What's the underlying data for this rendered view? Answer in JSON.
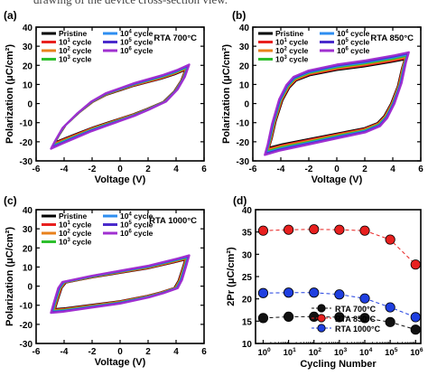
{
  "caption_fragment": "drawing of the device cross-section view.",
  "chart_data": [
    {
      "panel": "(a)",
      "type": "line",
      "annotation": "RTA 700°C",
      "xlabel": "Voltage (V)",
      "ylabel": "Polarization (μC/cm²)",
      "xlim": [
        -6,
        6
      ],
      "ylim": [
        -30,
        40
      ],
      "xticks": [
        -6,
        -4,
        -2,
        0,
        2,
        4,
        6
      ],
      "yticks": [
        -30,
        -20,
        -10,
        0,
        10,
        20,
        30,
        40
      ],
      "legend": [
        {
          "label": "Pristine",
          "sup": "",
          "color": "#000000"
        },
        {
          "label": "10",
          "sup": "1",
          "suffix": " cycle",
          "color": "#e8201f"
        },
        {
          "label": "10",
          "sup": "2",
          "suffix": " cycle",
          "color": "#e8821c"
        },
        {
          "label": "10",
          "sup": "3",
          "suffix": " cycle",
          "color": "#2dbf2d"
        },
        {
          "label": "10",
          "sup": "4",
          "suffix": " cycle",
          "color": "#2e8ef0"
        },
        {
          "label": "10",
          "sup": "5",
          "suffix": " cycle",
          "color": "#4a2bcc"
        },
        {
          "label": "10",
          "sup": "6",
          "suffix": " cycle",
          "color": "#a030d0"
        }
      ],
      "loop": {
        "upper": [
          [
            -4.8,
            -22
          ],
          [
            -4.5,
            -18
          ],
          [
            -4,
            -12
          ],
          [
            -3,
            -5
          ],
          [
            -2,
            1
          ],
          [
            -1,
            5
          ],
          [
            0,
            7.5
          ],
          [
            1,
            10
          ],
          [
            2,
            12
          ],
          [
            3,
            14
          ],
          [
            4,
            16.5
          ],
          [
            4.8,
            19
          ]
        ],
        "lower": [
          [
            4.8,
            19
          ],
          [
            4.5,
            13
          ],
          [
            4,
            7
          ],
          [
            3.2,
            1
          ],
          [
            2,
            -3
          ],
          [
            1,
            -6
          ],
          [
            0,
            -8.5
          ],
          [
            -1,
            -11
          ],
          [
            -2,
            -13.5
          ],
          [
            -3,
            -16.5
          ],
          [
            -4,
            -19.5
          ],
          [
            -4.8,
            -22
          ]
        ]
      }
    },
    {
      "panel": "(b)",
      "type": "line",
      "annotation": "RTA 850°C",
      "xlabel": "Voltage (V)",
      "ylabel": "Polarization (μC/cm²)",
      "xlim": [
        -6,
        6
      ],
      "ylim": [
        -30,
        40
      ],
      "xticks": [
        -6,
        -4,
        -2,
        0,
        2,
        4,
        6
      ],
      "yticks": [
        -30,
        -20,
        -10,
        0,
        10,
        20,
        30,
        40
      ],
      "legend": [
        {
          "label": "Pristine",
          "sup": "",
          "color": "#000000"
        },
        {
          "label": "10",
          "sup": "1",
          "suffix": " cycle",
          "color": "#e8201f"
        },
        {
          "label": "10",
          "sup": "2",
          "suffix": " cycle",
          "color": "#e8821c"
        },
        {
          "label": "10",
          "sup": "3",
          "suffix": " cycle",
          "color": "#2dbf2d"
        },
        {
          "label": "10",
          "sup": "4",
          "suffix": " cycle",
          "color": "#2e8ef0"
        },
        {
          "label": "10",
          "sup": "5",
          "suffix": " cycle",
          "color": "#4a2bcc"
        },
        {
          "label": "10",
          "sup": "6",
          "suffix": " cycle",
          "color": "#a030d0"
        }
      ],
      "loop": {
        "upper": [
          [
            -5,
            -25
          ],
          [
            -4.8,
            -20
          ],
          [
            -4.5,
            -10
          ],
          [
            -4,
            2
          ],
          [
            -3.5,
            9
          ],
          [
            -3,
            13
          ],
          [
            -2,
            16
          ],
          [
            0,
            19
          ],
          [
            2,
            21
          ],
          [
            4,
            23.5
          ],
          [
            5,
            25
          ]
        ],
        "lower": [
          [
            5,
            25
          ],
          [
            4.8,
            20
          ],
          [
            4.5,
            10
          ],
          [
            4,
            0
          ],
          [
            3.5,
            -7
          ],
          [
            3,
            -11
          ],
          [
            2,
            -14
          ],
          [
            0,
            -17
          ],
          [
            -2,
            -20
          ],
          [
            -4,
            -23
          ],
          [
            -5,
            -25
          ]
        ]
      }
    },
    {
      "panel": "(c)",
      "type": "line",
      "annotation": "RTA 1000°C",
      "xlabel": "Voltage (V)",
      "ylabel": "Polarization (μC/cm²)",
      "xlim": [
        -6,
        6
      ],
      "ylim": [
        -30,
        40
      ],
      "xticks": [
        -6,
        -4,
        -2,
        0,
        2,
        4,
        6
      ],
      "yticks": [
        -30,
        -20,
        -10,
        0,
        10,
        20,
        30,
        40
      ],
      "legend": [
        {
          "label": "Pristine",
          "sup": "",
          "color": "#000000"
        },
        {
          "label": "10",
          "sup": "1",
          "suffix": " cycle",
          "color": "#e8201f"
        },
        {
          "label": "10",
          "sup": "2",
          "suffix": " cycle",
          "color": "#e8821c"
        },
        {
          "label": "10",
          "sup": "3",
          "suffix": " cycle",
          "color": "#2dbf2d"
        },
        {
          "label": "10",
          "sup": "4",
          "suffix": " cycle",
          "color": "#2e8ef0"
        },
        {
          "label": "10",
          "sup": "5",
          "suffix": " cycle",
          "color": "#4a2bcc"
        },
        {
          "label": "10",
          "sup": "6",
          "suffix": " cycle",
          "color": "#a030d0"
        }
      ],
      "loop": {
        "upper": [
          [
            -4.8,
            -13
          ],
          [
            -4.6,
            -8
          ],
          [
            -4.3,
            -1
          ],
          [
            -4,
            2
          ],
          [
            -3,
            3.5
          ],
          [
            -2,
            5
          ],
          [
            0,
            7.5
          ],
          [
            2,
            10
          ],
          [
            4,
            13.5
          ],
          [
            4.8,
            15
          ]
        ],
        "lower": [
          [
            4.8,
            15
          ],
          [
            4.6,
            10
          ],
          [
            4.3,
            3
          ],
          [
            4,
            -1
          ],
          [
            3,
            -3.5
          ],
          [
            2,
            -5.5
          ],
          [
            0,
            -8.5
          ],
          [
            -2,
            -10.5
          ],
          [
            -4,
            -12.5
          ],
          [
            -4.8,
            -13
          ]
        ]
      }
    },
    {
      "panel": "(d)",
      "type": "scatter",
      "xlabel": "Cycling Number",
      "ylabel": "2Pr (μC/cm²)",
      "xscale": "log",
      "xlim": [
        0.5,
        1000000
      ],
      "ylim": [
        10,
        40
      ],
      "xticks": [
        1,
        10,
        100,
        1000,
        10000,
        100000,
        1000000
      ],
      "xtick_labels": [
        {
          "base": "10",
          "sup": "0"
        },
        {
          "base": "10",
          "sup": "1"
        },
        {
          "base": "10",
          "sup": "2"
        },
        {
          "base": "10",
          "sup": "3"
        },
        {
          "base": "10",
          "sup": "4"
        },
        {
          "base": "10",
          "sup": "5"
        },
        {
          "base": "10",
          "sup": "6"
        }
      ],
      "yticks": [
        10,
        15,
        20,
        25,
        30,
        35,
        40
      ],
      "x": [
        1,
        10,
        100,
        1000,
        10000,
        100000,
        1000000
      ],
      "series": [
        {
          "name": "RTA 700°C",
          "color": "#111111",
          "values": [
            15.7,
            16.0,
            16.0,
            15.9,
            15.7,
            14.8,
            13.1
          ]
        },
        {
          "name": "RTA 850°C",
          "color": "#e8201f",
          "values": [
            35.3,
            35.5,
            35.6,
            35.5,
            35.3,
            33.3,
            27.7
          ]
        },
        {
          "name": "RTA 1000°C",
          "color": "#1f3fe0",
          "values": [
            21.3,
            21.4,
            21.4,
            21.0,
            20.1,
            18.1,
            15.9
          ]
        }
      ],
      "legend_position": "bottom-center"
    }
  ]
}
